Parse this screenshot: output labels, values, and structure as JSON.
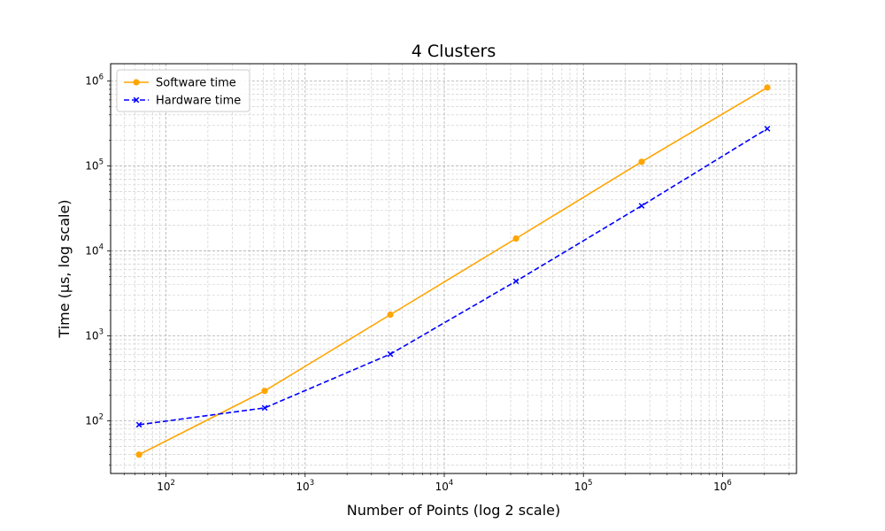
{
  "chart_data": {
    "type": "line",
    "title": "4 Clusters",
    "xlabel": "Number of Points (log 2 scale)",
    "ylabel": "Time (µs, log scale)",
    "xscale": "log",
    "yscale": "log",
    "xlim": [
      40,
      3400000
    ],
    "ylim": [
      24,
      1600000
    ],
    "x_ticks": [
      {
        "base": "10",
        "exp": "2",
        "value": 100
      },
      {
        "base": "10",
        "exp": "3",
        "value": 1000
      },
      {
        "base": "10",
        "exp": "4",
        "value": 10000
      },
      {
        "base": "10",
        "exp": "5",
        "value": 100000
      },
      {
        "base": "10",
        "exp": "6",
        "value": 1000000
      }
    ],
    "y_ticks": [
      {
        "base": "10",
        "exp": "2",
        "value": 100
      },
      {
        "base": "10",
        "exp": "3",
        "value": 1000
      },
      {
        "base": "10",
        "exp": "4",
        "value": 10000
      },
      {
        "base": "10",
        "exp": "5",
        "value": 100000
      },
      {
        "base": "10",
        "exp": "6",
        "value": 1000000
      }
    ],
    "grid": true,
    "legend_position": "top-left",
    "x": [
      64,
      512,
      4096,
      32768,
      262144,
      2097152
    ],
    "series": [
      {
        "name": "Software time",
        "values": [
          40,
          225,
          1780,
          14000,
          112000,
          840000
        ],
        "color": "#ffa500",
        "line_style": "solid",
        "marker": "circle"
      },
      {
        "name": "Hardware time",
        "values": [
          90,
          142,
          610,
          4400,
          34000,
          275000
        ],
        "color": "#0000ff",
        "line_style": "dashed",
        "marker": "x"
      }
    ]
  }
}
